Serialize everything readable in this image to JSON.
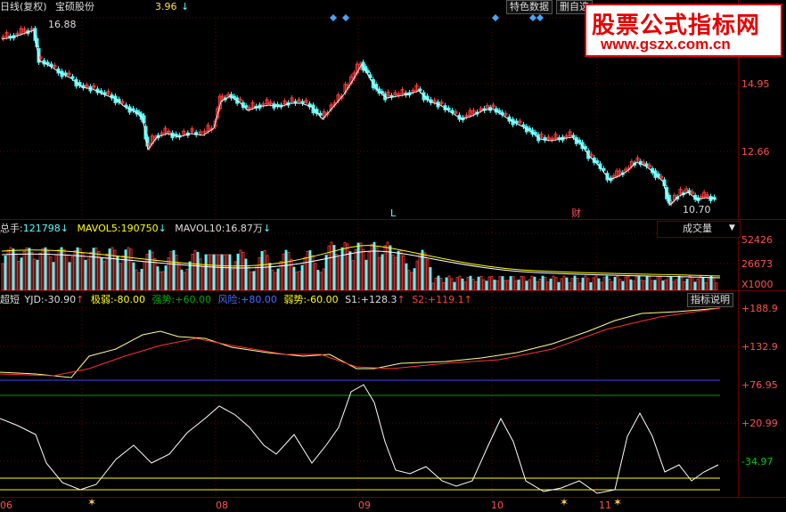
{
  "header": {
    "period_label": "日线(复权)",
    "stock_name": "宝硕股份",
    "partial_value": "3.96",
    "arrow": "↓",
    "btn_feature": "特色数据",
    "btn_delete": "删自选"
  },
  "watermark": {
    "line1": "股票公式指标网",
    "line2": "www.gszx.com.cn"
  },
  "price_panel": {
    "high_label": "16.88",
    "low_label": "10.70",
    "axis_labels": [
      "14.95",
      "12.66"
    ],
    "marker_L": "L",
    "marker_cai": "财"
  },
  "volume_panel": {
    "label_total": "总手:",
    "total_value": "121798",
    "label_mavol5": "MAVOL5:",
    "mavol5_value": "190750",
    "label_mavol10": "MAVOL10:",
    "mavol10_value": "16.87万",
    "dropdown_label": "成交量",
    "axis_labels": [
      "52426",
      "26673"
    ],
    "unit_label": "X1000"
  },
  "indicator_panel": {
    "name": "超短",
    "yjd_label": "YJD:",
    "yjd_value": "-30.90",
    "jiruo_label": "极弱:",
    "jiruo_value": "-80.00",
    "qiangshi_label": "强势:",
    "qiangshi_value": "+60.00",
    "fengxian_label": "风险:",
    "fengxian_value": "+80.00",
    "ruoshi_label": "弱势:",
    "ruoshi_value": "-60.00",
    "s1_label": "S1:",
    "s1_value": "+128.3",
    "s2_label": "S2:",
    "s2_value": "+119.1",
    "help_button": "指标说明",
    "axis_labels": [
      "+188.9",
      "+132.9",
      "+76.95",
      "+20.99",
      "-34.97"
    ]
  },
  "x_axis": {
    "labels": [
      "06",
      "08",
      "09",
      "10",
      "11"
    ]
  },
  "colors": {
    "up": "#ff3c3c",
    "down": "#54ffff",
    "ma": "#ffffff",
    "grid": "#6b0000",
    "axis_text": "#ff5050",
    "yellow": "#ffff00",
    "blue": "#4040ff",
    "green": "#00aa00"
  }
}
